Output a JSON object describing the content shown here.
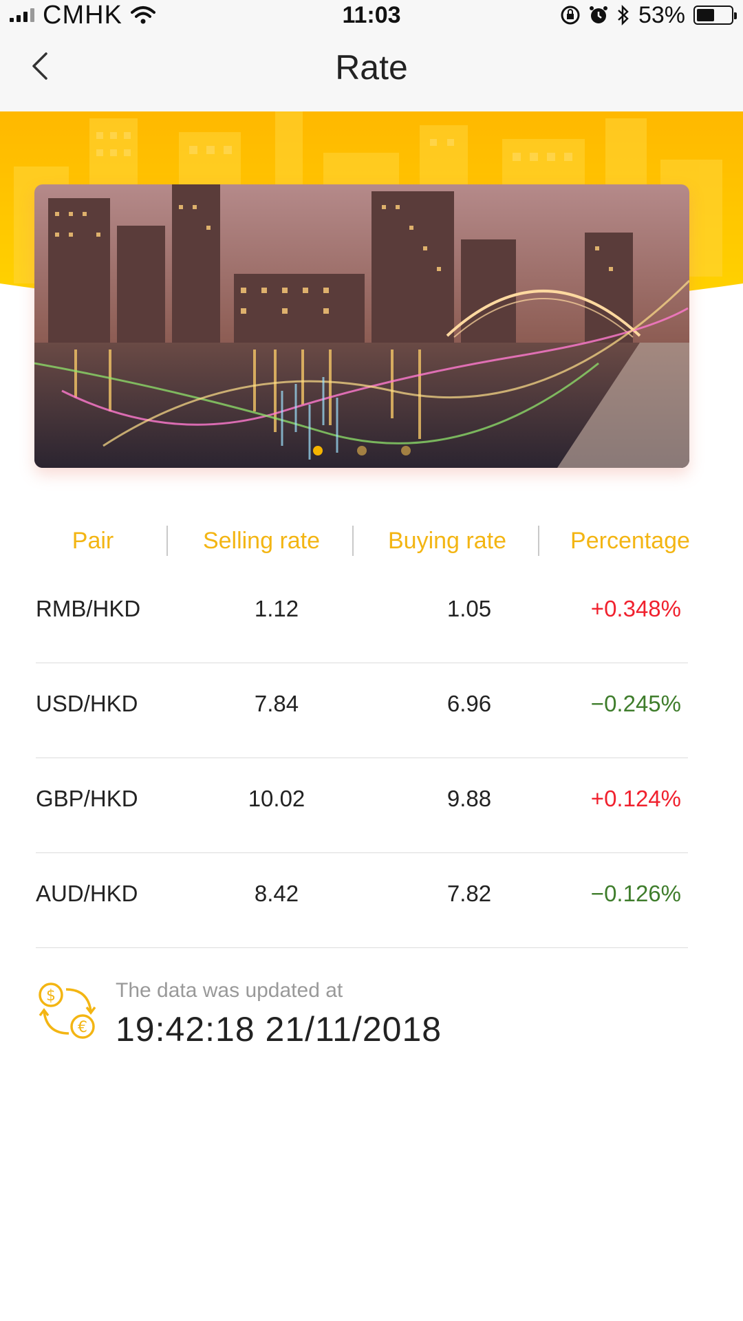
{
  "status_bar": {
    "carrier": "CMHK",
    "time": "11:03",
    "battery_percent": "53%",
    "battery_level": 0.53
  },
  "nav": {
    "title": "Rate"
  },
  "banner": {
    "slide_count": 3,
    "active_slide": 0
  },
  "table": {
    "headers": [
      "Pair",
      "Selling rate",
      "Buying rate",
      "Percentage"
    ],
    "rows": [
      {
        "pair": "RMB/HKD",
        "selling": "1.12",
        "buying": "1.05",
        "percentage": "+0.348%",
        "direction": "up"
      },
      {
        "pair": "USD/HKD",
        "selling": "7.84",
        "buying": "6.96",
        "percentage": "−0.245%",
        "direction": "down"
      },
      {
        "pair": "GBP/HKD",
        "selling": "10.02",
        "buying": "9.88",
        "percentage": "+0.124%",
        "direction": "up"
      },
      {
        "pair": "AUD/HKD",
        "selling": "8.42",
        "buying": "7.82",
        "percentage": "−0.126%",
        "direction": "down"
      }
    ]
  },
  "update": {
    "label": "The data was updated at",
    "timestamp": "19:42:18  21/11/2018"
  },
  "colors": {
    "accent": "#f3b513",
    "positive": "#f0212e",
    "negative": "#3f7d2c",
    "header_yellow": "#ffc400"
  },
  "icons": {
    "back": "chevron-left-icon",
    "exchange": "currency-exchange-icon"
  }
}
